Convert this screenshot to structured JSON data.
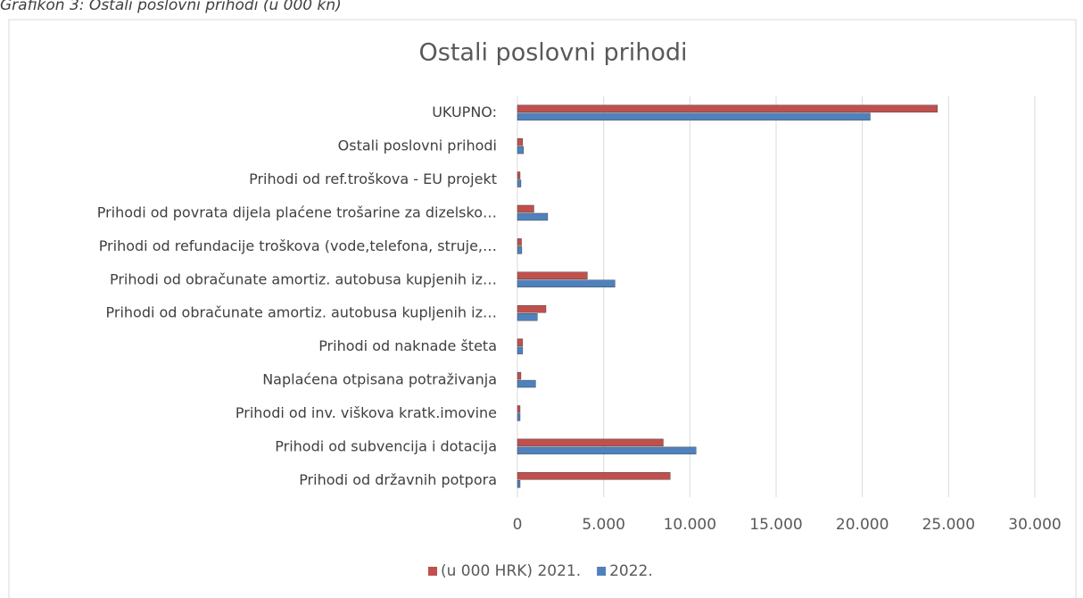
{
  "caption": "Grafikon 3: Ostali poslovni prihodi (u 000 kn)",
  "chart_data": {
    "type": "hbar",
    "title": "Ostali poslovni prihodi",
    "categories": [
      "UKUPNO:",
      "Ostali poslovni prihodi",
      "Prihodi od ref.troškova - EU projekt",
      "Prihodi od povrata dijela plaćene trošarine za dizelsko…",
      "Prihodi od refundacije troškova (vode,telefona, struje,…",
      "Prihodi od obračunate amortiz. autobusa kupjenih iz…",
      "Prihodi od obračunate amortiz. autobusa kupljenih iz…",
      "Prihodi od naknade šteta",
      "Naplaćena otpisana potraživanja",
      "Prihodi od inv. viškova kratk.imovine",
      "Prihodi od subvencija i dotacija",
      "Prihodi od državnih potpora"
    ],
    "series": [
      {
        "name": "(u 000 HRK) 2021.",
        "color": "#c0504d",
        "values": [
          24200,
          150,
          0,
          800,
          80,
          3900,
          1500,
          150,
          50,
          0,
          8300,
          8700
        ]
      },
      {
        "name": "2022.",
        "color": "#4f81bd",
        "values": [
          20300,
          200,
          50,
          1600,
          100,
          5500,
          1000,
          150,
          900,
          0,
          10200,
          0
        ]
      }
    ],
    "xlim": [
      0,
      30000
    ],
    "xticks": [
      0,
      {
        "value": 5000,
        "label": "5.000"
      },
      {
        "value": 10000,
        "label": "10.000"
      },
      {
        "value": 15000,
        "label": "15.000"
      },
      {
        "value": 20000,
        "label": "20.000"
      },
      {
        "value": 25000,
        "label": "25.000"
      },
      {
        "value": 30000,
        "label": "30.000"
      }
    ],
    "grid": true,
    "legend": "bottom"
  }
}
